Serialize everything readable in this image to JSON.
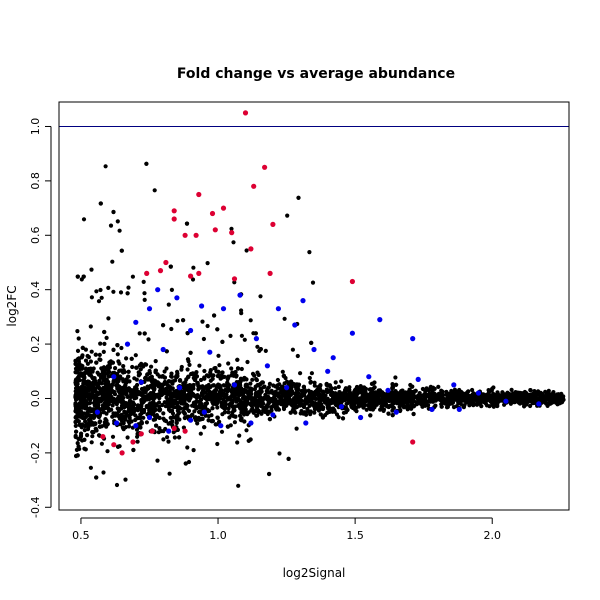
{
  "chart_data": {
    "type": "scatter",
    "title": "Fold change vs average abundance",
    "xlabel": "log2Signal",
    "ylabel": "log2FC",
    "xlim": [
      0.42,
      2.28
    ],
    "ylim": [
      -0.41,
      1.09
    ],
    "x_ticks": [
      0.5,
      1.0,
      1.5,
      2.0
    ],
    "x_tick_labels": [
      "0.5",
      "1.0",
      "1.5",
      "2.0"
    ],
    "y_ticks": [
      -0.4,
      -0.2,
      0.0,
      0.2,
      0.4,
      0.6,
      0.8,
      1.0
    ],
    "y_tick_labels": [
      "-0.4",
      "-0.2",
      "0.0",
      "0.2",
      "0.4",
      "0.6",
      "0.8",
      "1.0"
    ],
    "hline": {
      "y": 1.0,
      "color": "#000080"
    },
    "grid": false,
    "legend": "none",
    "colors": {
      "background": "#000000",
      "blue": "#0000ee",
      "red": "#dd0033"
    },
    "series": [
      {
        "color": "#dd0033",
        "points": [
          [
            1.1,
            1.05
          ],
          [
            1.17,
            0.85
          ],
          [
            1.13,
            0.78
          ],
          [
            0.93,
            0.75
          ],
          [
            0.84,
            0.69
          ],
          [
            1.02,
            0.7
          ],
          [
            0.98,
            0.68
          ],
          [
            0.84,
            0.66
          ],
          [
            1.2,
            0.64
          ],
          [
            0.99,
            0.62
          ],
          [
            0.88,
            0.6
          ],
          [
            0.92,
            0.6
          ],
          [
            1.05,
            0.61
          ],
          [
            1.12,
            0.55
          ],
          [
            0.81,
            0.5
          ],
          [
            1.19,
            0.46
          ],
          [
            0.74,
            0.46
          ],
          [
            0.79,
            0.47
          ],
          [
            0.9,
            0.45
          ],
          [
            0.93,
            0.46
          ],
          [
            1.06,
            0.44
          ],
          [
            1.49,
            0.43
          ],
          [
            1.71,
            -0.16
          ],
          [
            0.62,
            -0.17
          ],
          [
            0.69,
            -0.16
          ],
          [
            0.76,
            -0.12
          ],
          [
            0.84,
            -0.11
          ],
          [
            0.65,
            -0.2
          ],
          [
            0.58,
            -0.14
          ],
          [
            0.72,
            -0.13
          ],
          [
            0.88,
            -0.12
          ]
        ]
      },
      {
        "color": "#0000ee",
        "points": [
          [
            1.31,
            0.36
          ],
          [
            1.08,
            0.38
          ],
          [
            1.22,
            0.33
          ],
          [
            0.75,
            0.33
          ],
          [
            0.78,
            0.4
          ],
          [
            0.85,
            0.37
          ],
          [
            0.94,
            0.34
          ],
          [
            1.02,
            0.33
          ],
          [
            1.59,
            0.29
          ],
          [
            1.28,
            0.27
          ],
          [
            1.71,
            0.22
          ],
          [
            1.49,
            0.24
          ],
          [
            0.7,
            0.28
          ],
          [
            0.9,
            0.25
          ],
          [
            1.14,
            0.22
          ],
          [
            1.35,
            0.18
          ],
          [
            1.42,
            0.15
          ],
          [
            0.67,
            0.2
          ],
          [
            0.8,
            0.18
          ],
          [
            0.97,
            0.17
          ],
          [
            1.18,
            0.12
          ],
          [
            1.4,
            0.1
          ],
          [
            1.55,
            0.08
          ],
          [
            1.73,
            0.07
          ],
          [
            1.86,
            0.05
          ],
          [
            0.62,
            0.08
          ],
          [
            0.72,
            0.06
          ],
          [
            0.86,
            0.04
          ],
          [
            1.06,
            0.05
          ],
          [
            1.25,
            0.04
          ],
          [
            1.62,
            0.03
          ],
          [
            1.95,
            0.02
          ],
          [
            2.05,
            -0.01
          ],
          [
            1.45,
            -0.03
          ],
          [
            1.2,
            -0.06
          ],
          [
            0.95,
            -0.05
          ],
          [
            0.75,
            -0.07
          ],
          [
            0.63,
            -0.09
          ],
          [
            0.82,
            -0.12
          ],
          [
            1.01,
            -0.1
          ],
          [
            1.32,
            -0.09
          ],
          [
            1.65,
            -0.05
          ],
          [
            1.88,
            -0.04
          ],
          [
            2.17,
            -0.02
          ],
          [
            0.56,
            -0.05
          ],
          [
            0.7,
            -0.1
          ],
          [
            1.12,
            -0.09
          ],
          [
            1.52,
            -0.07
          ],
          [
            1.78,
            -0.04
          ],
          [
            0.9,
            -0.08
          ]
        ]
      }
    ]
  }
}
